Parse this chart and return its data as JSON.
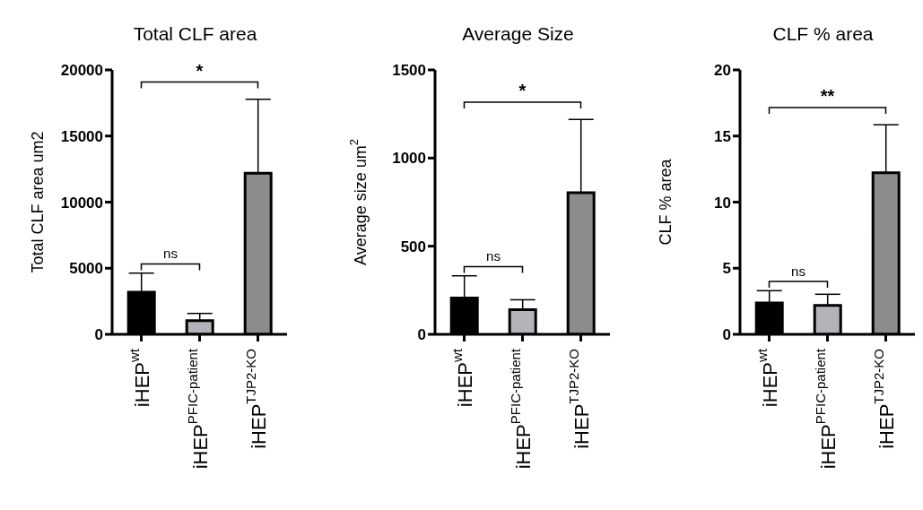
{
  "chart_data": [
    {
      "type": "bar",
      "title": "Total CLF area",
      "ylabel": "Total CLF area um2",
      "categories": [
        "iHEP$^{wt}$",
        "iHEP$^{PFIC-patient}$",
        "iHEP$^{TJP2-KO}$"
      ],
      "values": [
        3180,
        1030,
        12180
      ],
      "colors": [
        "#000000",
        "#b4b4b8",
        "#8c8c8c"
      ],
      "errors": [
        [
          3180,
          4630
        ],
        [
          1030,
          1580
        ],
        [
          12180,
          17780
        ]
      ],
      "ylim": [
        0,
        20000
      ],
      "yticks": [
        0,
        5000,
        10000,
        15000,
        20000
      ],
      "annotations": [
        "*",
        "ns"
      ]
    },
    {
      "type": "bar",
      "title": "Average Size",
      "ylabel": "Average size um$^{2}$",
      "categories": [
        "iHEP$^{wt}$",
        "iHEP$^{PFIC-patient}$",
        "iHEP$^{TJP2-KO}$"
      ],
      "values": [
        206,
        140,
        803
      ],
      "colors": [
        "#000000",
        "#b4b4b8",
        "#8c8c8c"
      ],
      "errors": [
        [
          206,
          332
        ],
        [
          140,
          196
        ],
        [
          803,
          1219
        ]
      ],
      "ylim": [
        0,
        1500
      ],
      "yticks": [
        0,
        500,
        1000,
        1500
      ],
      "annotations": [
        "*",
        "ns"
      ]
    },
    {
      "type": "bar",
      "title": "CLF % area",
      "ylabel": "CLF % area",
      "categories": [
        "iHEP$^{wt}$",
        "iHEP$^{PFIC-patient}$",
        "iHEP$^{TJP2-KO}$"
      ],
      "values": [
        2.37,
        2.19,
        12.22
      ],
      "colors": [
        "#000000",
        "#b4b4b8",
        "#8c8c8c"
      ],
      "errors": [
        [
          2.37,
          3.3
        ],
        [
          2.19,
          3.03
        ],
        [
          12.22,
          15.85
        ]
      ],
      "ylim": [
        0,
        20
      ],
      "yticks": [
        0,
        5,
        10,
        15,
        20
      ],
      "annotations": [
        "**",
        "ns"
      ]
    }
  ]
}
